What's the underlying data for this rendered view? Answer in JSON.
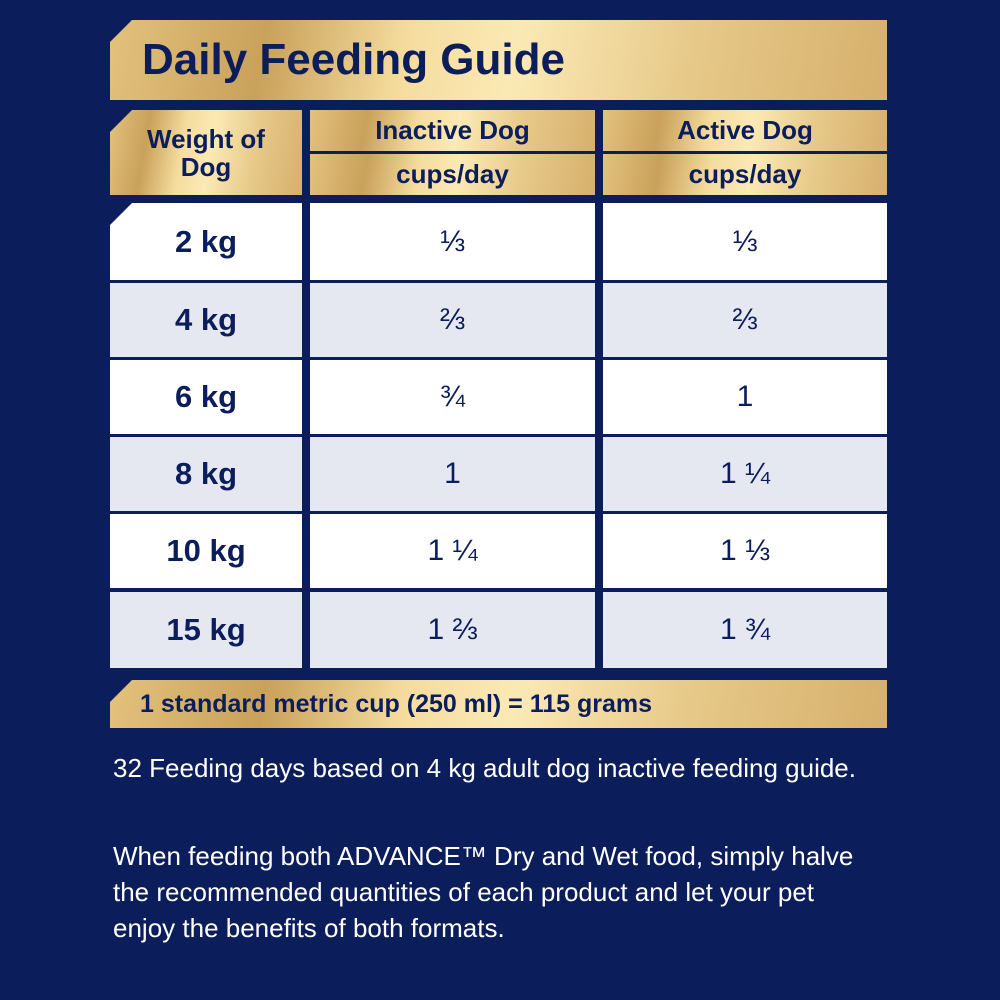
{
  "title": "Daily Feeding Guide",
  "table": {
    "headers": {
      "weight": "Weight of Dog",
      "inactive": "Inactive Dog",
      "active": "Active Dog",
      "unit": "cups/day"
    },
    "rows": [
      {
        "weight": "2 kg",
        "inactive": "⅓",
        "active": "⅓"
      },
      {
        "weight": "4 kg",
        "inactive": "⅔",
        "active": "⅔"
      },
      {
        "weight": "6 kg",
        "inactive": "¾",
        "active": "1"
      },
      {
        "weight": "8 kg",
        "inactive": "1",
        "active": "1 ¼"
      },
      {
        "weight": "10 kg",
        "inactive": "1 ¼",
        "active": "1 ⅓"
      },
      {
        "weight": "15 kg",
        "inactive": "1 ⅔",
        "active": "1 ¾"
      }
    ]
  },
  "footer": "1 standard metric cup (250 ml) = 115 grams",
  "notes": [
    "32 Feeding days based on 4 kg adult dog inactive feeding guide.",
    "When feeding both ADVANCE™ Dry and Wet food, simply halve the recommended quantities of each product and let your pet enjoy the benefits of both formats."
  ],
  "colors": {
    "background": "#0b1d5a",
    "text": "#0b1d5a",
    "row_alt": "#e5e8f1",
    "gold": "#e6c888"
  }
}
